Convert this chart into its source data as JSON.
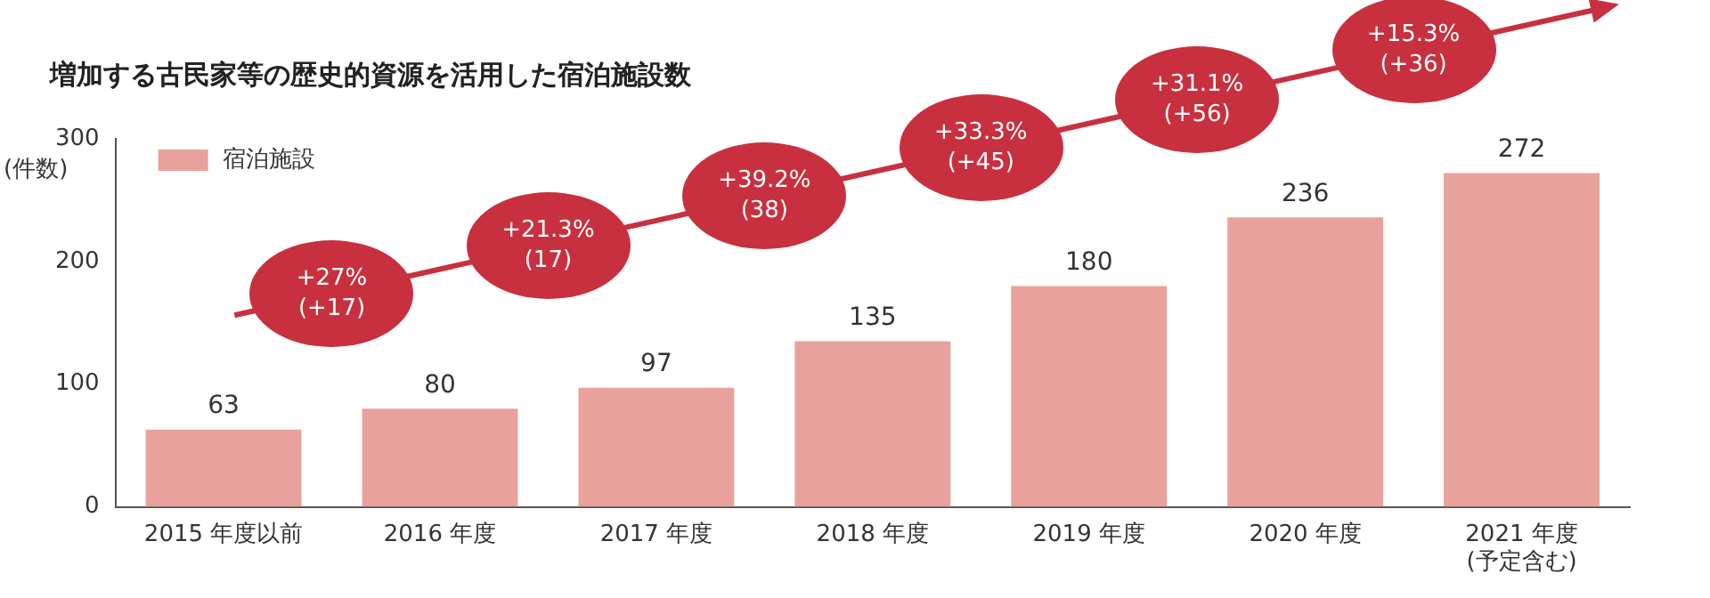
{
  "chart_data": {
    "type": "bar",
    "title": "増加する古民家等の歴史的資源を活用した宿泊施設数",
    "ylabel": "(件数)",
    "categories": [
      "2015 年度以前",
      "2016 年度",
      "2017 年度",
      "2018 年度",
      "2019 年度",
      "2020 年度",
      "2021 年度\n(予定含む)"
    ],
    "series": [
      {
        "name": "宿泊施設",
        "color": "#e8a29b",
        "values": [
          63,
          80,
          97,
          135,
          180,
          236,
          272
        ]
      }
    ],
    "ylim": [
      0,
      300
    ],
    "yticks": [
      0,
      100,
      200,
      300
    ],
    "grid": false,
    "legend": "top left",
    "data_labels": true,
    "annotations": [
      "+27%\n(+17)",
      "+21.3%\n(17)",
      "+39.2%\n(38)",
      "+33.3%\n(+45)",
      "+31.1%\n(+56)",
      "+15.3%\n(+36)"
    ]
  }
}
